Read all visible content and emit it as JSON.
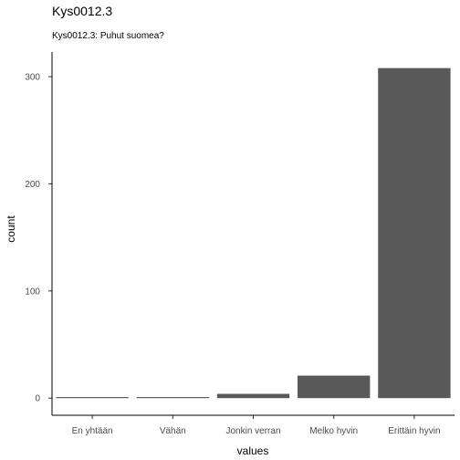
{
  "chart_data": {
    "type": "bar",
    "title": "Kys0012.3",
    "subtitle": "Kys0012.3: Puhut suomea?",
    "xlabel": "values",
    "ylabel": "count",
    "categories": [
      "En yhtään",
      "Vähän",
      "Jonkin verran",
      "Melko hyvin",
      "Erittäin hyvin"
    ],
    "values": [
      1,
      1,
      4,
      21,
      308
    ],
    "ylim": [
      -16,
      323
    ],
    "yticks": [
      0,
      100,
      200,
      300
    ],
    "grid": false,
    "bar_color": "#595959"
  }
}
